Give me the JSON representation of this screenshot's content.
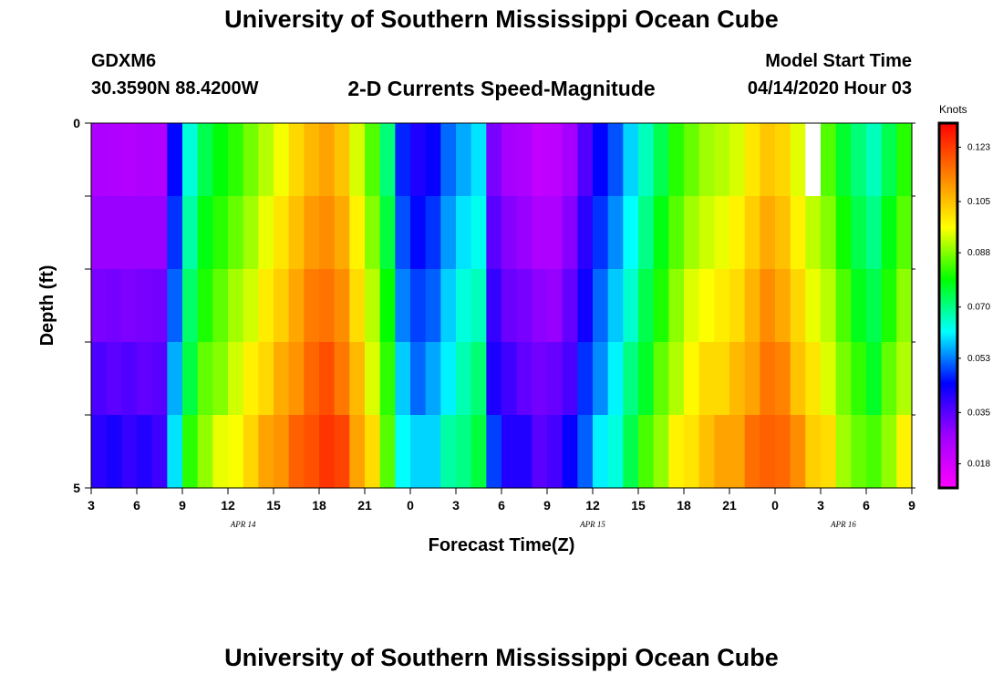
{
  "header": {
    "title": "University of Southern Mississippi Ocean Cube",
    "station_id": "GDXM6",
    "coordinates": "30.3590N 88.4200W",
    "subtitle": "2-D Currents Speed-Magnitude",
    "model_start_label": "Model Start Time",
    "model_start_value": "04/14/2020 Hour 03"
  },
  "footer": {
    "title": "University of Southern Mississippi Ocean Cube"
  },
  "chart_data": {
    "type": "heatmap",
    "title": "2-D Currents Speed-Magnitude",
    "xlabel": "Forecast Time(Z)",
    "ylabel": "Depth (ft)",
    "x_hours_from_start": [
      0,
      54
    ],
    "x_tick_labels": [
      "3",
      "6",
      "9",
      "12",
      "15",
      "18",
      "21",
      "0",
      "3",
      "6",
      "9",
      "12",
      "15",
      "18",
      "21",
      "0",
      "3",
      "6",
      "9"
    ],
    "date_labels": [
      {
        "label": "APR 14",
        "hour": 10
      },
      {
        "label": "APR 15",
        "hour": 33
      },
      {
        "label": "APR 16",
        "hour": 49.5
      }
    ],
    "y_range": [
      0,
      5
    ],
    "y_tick_labels": [
      "0",
      "5"
    ],
    "depth_levels": 5,
    "colorbar": {
      "units": "Knots",
      "tick_labels": [
        "0.123",
        "0.105",
        "0.088",
        "0.070",
        "0.053",
        "0.035",
        "0.018"
      ],
      "tick_values": [
        0.123,
        0.105,
        0.088,
        0.07,
        0.053,
        0.035,
        0.018
      ],
      "range": [
        0.01,
        0.131
      ],
      "colormap": [
        "#ff00ff",
        "#a000ff",
        "#0000ff",
        "#00ffff",
        "#00ff00",
        "#ffff00",
        "#ff8000",
        "#ff0000"
      ]
    },
    "column_speed_profile": [
      0.028,
      0.028,
      0.028,
      0.028,
      0.028,
      0.048,
      0.068,
      0.078,
      0.082,
      0.086,
      0.09,
      0.095,
      0.1,
      0.105,
      0.11,
      0.112,
      0.108,
      0.098,
      0.088,
      0.075,
      0.05,
      0.045,
      0.048,
      0.055,
      0.06,
      0.063,
      0.035,
      0.03,
      0.028,
      0.025,
      0.025,
      0.03,
      0.04,
      0.048,
      0.054,
      0.062,
      0.07,
      0.078,
      0.085,
      0.09,
      0.093,
      0.095,
      0.098,
      0.103,
      0.108,
      0.105,
      0.098,
      0.092,
      0.088,
      0.08,
      0.074,
      0.07,
      0.078,
      0.085
    ],
    "depth_bias": [
      -0.003,
      0.0,
      0.003,
      0.006,
      0.01
    ],
    "missing_cells": [
      {
        "hour": 47,
        "depth_level": 0
      }
    ]
  }
}
